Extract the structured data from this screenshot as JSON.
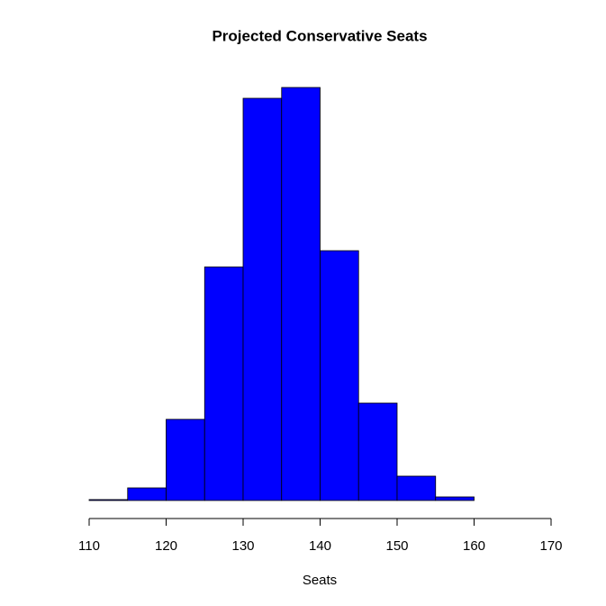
{
  "chart_data": {
    "type": "histogram",
    "title": "Projected Conservative Seats",
    "x_label": "Seats",
    "bins": [
      110,
      115,
      120,
      125,
      130,
      135,
      140,
      145,
      150,
      155,
      160,
      165,
      170
    ],
    "values": [
      1,
      14,
      90,
      259,
      446,
      458,
      277,
      108,
      27,
      4,
      0,
      0
    ],
    "color": "#0000ff",
    "xlim": [
      110,
      170
    ],
    "xticks": [
      110,
      120,
      130,
      140,
      150,
      160,
      170
    ]
  }
}
